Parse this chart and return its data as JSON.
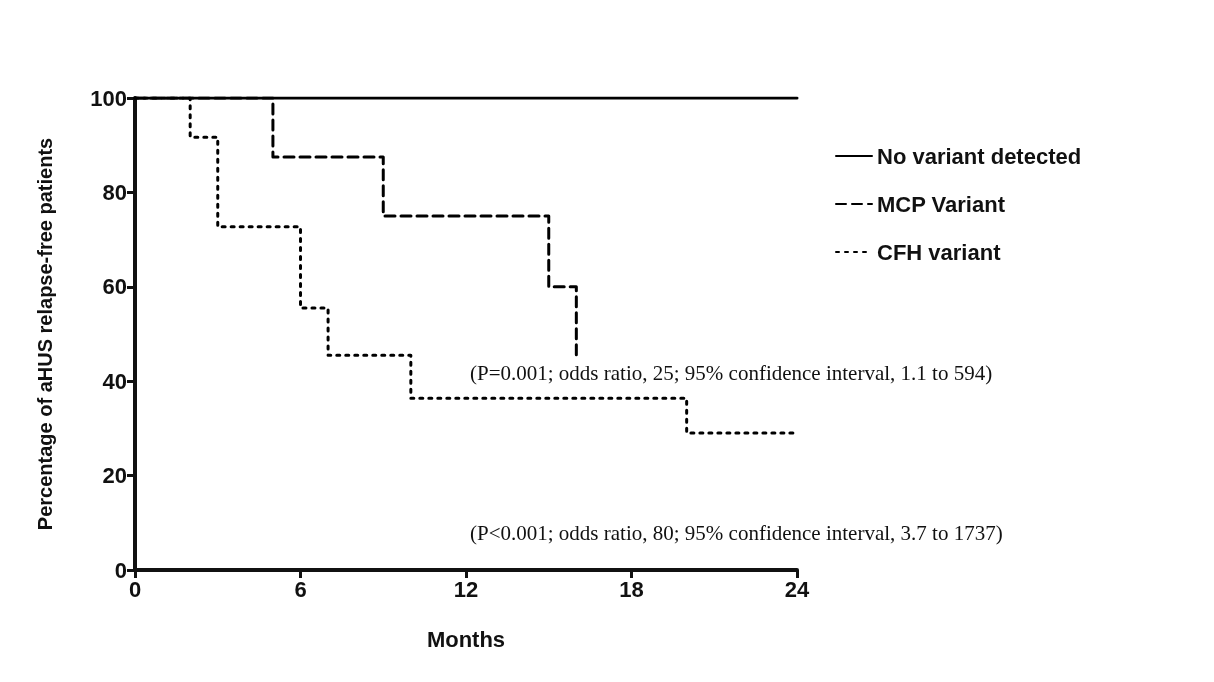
{
  "chart_data": {
    "type": "step",
    "xlabel": "Months",
    "ylabel": "Percentage of aHUS relapse-free patients",
    "xlim": [
      0,
      24
    ],
    "xticks": [
      0,
      6,
      12,
      18,
      24
    ],
    "ylim": [
      0,
      100
    ],
    "yticks": [
      0,
      20,
      40,
      60,
      80,
      100
    ],
    "grid": false,
    "legend": "right",
    "marker": "none",
    "series": [
      {
        "name": "No variant detected",
        "color": "#000000",
        "line_style": "solid",
        "x": [
          0,
          24
        ],
        "values": [
          100,
          100
        ]
      },
      {
        "name": "MCP Variant",
        "color": "#000000",
        "line_style": "dashed",
        "x": [
          0,
          5,
          9,
          15,
          16
        ],
        "values": [
          100,
          87.5,
          75,
          60,
          45
        ]
      },
      {
        "name": "CFH variant",
        "color": "#000000",
        "line_style": "dotted",
        "x": [
          0,
          2,
          3,
          6,
          7,
          10,
          20,
          24
        ],
        "values": [
          100,
          91.7,
          72.7,
          55.5,
          45.5,
          36.4,
          29,
          29
        ]
      }
    ],
    "annotations": [
      "(P=0.001; odds ratio, 25; 95% confidence interval, 1.1 to 594)",
      "(P<0.001; odds ratio, 80; 95% confidence interval, 3.7 to 1737)"
    ]
  }
}
